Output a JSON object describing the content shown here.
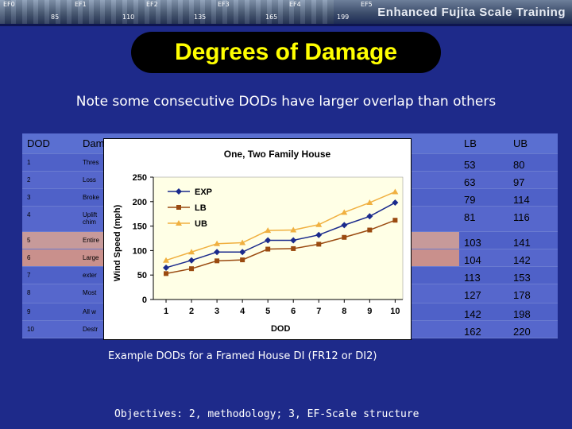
{
  "header": {
    "ef_labels": [
      "EF0",
      "EF1",
      "EF2",
      "EF3",
      "EF4",
      "EF5"
    ],
    "speeds": [
      "85",
      "110",
      "135",
      "165",
      "199"
    ],
    "brand": "Enhanced Fujita Scale Training"
  },
  "slide": {
    "title": "Degrees of Damage",
    "subtitle": "Note some consecutive DODs have larger overlap than others",
    "caption": "Example DODs for a Framed House DI (FR12 or DI2)",
    "objectives": "Objectives: 2, methodology; 3, EF-Scale structure"
  },
  "table": {
    "headers": {
      "dod": "DOD",
      "desc": "Dam",
      "lb": "LB",
      "ub": "UB"
    },
    "rows": [
      {
        "dod": "1",
        "desc": "Thres",
        "lb": "53",
        "ub": "80"
      },
      {
        "dod": "2",
        "desc": "Loss",
        "lb": "63",
        "ub": "97"
      },
      {
        "dod": "3",
        "desc": "Broke",
        "lb": "79",
        "ub": "114"
      },
      {
        "dod": "4",
        "desc": "Uplift\nchim",
        "lb": "81",
        "ub": "116"
      },
      {
        "dod": "5",
        "desc": "Entire",
        "lb": "103",
        "ub": "141"
      },
      {
        "dod": "6",
        "desc": "Large",
        "lb": "104",
        "ub": "142"
      },
      {
        "dod": "7",
        "desc": "exter",
        "lb": "113",
        "ub": "153"
      },
      {
        "dod": "8",
        "desc": "Most",
        "lb": "127",
        "ub": "178"
      },
      {
        "dod": "9",
        "desc": "All w",
        "lb": "142",
        "ub": "198"
      },
      {
        "dod": "10",
        "desc": "Destr",
        "lb": "162",
        "ub": "220"
      }
    ]
  },
  "chart_data": {
    "type": "line",
    "title": "One, Two Family House",
    "xlabel": "DOD",
    "ylabel": "Wind Speed (mph)",
    "x": [
      1,
      2,
      3,
      4,
      5,
      6,
      7,
      8,
      9,
      10
    ],
    "ylim": [
      0,
      250
    ],
    "yticks": [
      0,
      50,
      100,
      150,
      200,
      250
    ],
    "grid": false,
    "legend": "top-left",
    "series": [
      {
        "name": "EXP",
        "color": "#1a2a8c",
        "marker": "diamond",
        "values": [
          65,
          80,
          97,
          97,
          121,
          121,
          132,
          152,
          170,
          198
        ]
      },
      {
        "name": "LB",
        "color": "#9a4a10",
        "marker": "square",
        "values": [
          53,
          63,
          79,
          81,
          103,
          104,
          113,
          127,
          142,
          162
        ]
      },
      {
        "name": "UB",
        "color": "#f0b040",
        "marker": "triangle",
        "values": [
          80,
          97,
          114,
          116,
          141,
          142,
          153,
          178,
          198,
          220
        ]
      }
    ],
    "plot_bg": "#ffffe6"
  }
}
